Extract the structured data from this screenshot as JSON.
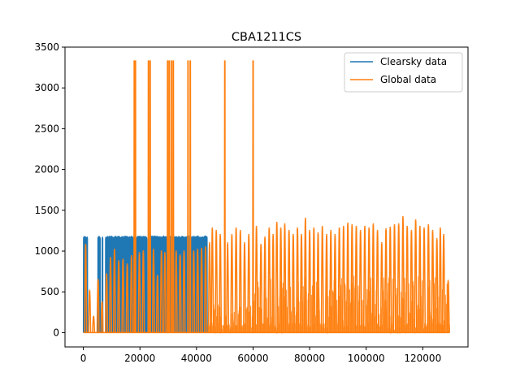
{
  "chart_data": {
    "type": "line",
    "title": "CBA1211CS",
    "xlabel": "",
    "ylabel": "",
    "xlim": [
      -6500,
      136000
    ],
    "ylim": [
      -175,
      3500
    ],
    "xticks": [
      0,
      20000,
      40000,
      60000,
      80000,
      100000,
      120000
    ],
    "xtick_labels": [
      "0",
      "20000",
      "40000",
      "60000",
      "80000",
      "100000",
      "120000"
    ],
    "yticks": [
      0,
      500,
      1000,
      1500,
      2000,
      2500,
      3000,
      3500
    ],
    "ytick_labels": [
      "0",
      "500",
      "1000",
      "1500",
      "2000",
      "2500",
      "3000",
      "3500"
    ],
    "legend_position": "top-right",
    "series": [
      {
        "name": "Clearsky data",
        "color": "#1f77b4",
        "description": "daily clear-sky irradiance cycles",
        "x_range": [
          0,
          43500
        ],
        "peak_value": 1190,
        "gaps": [
          [
            1500,
            5000
          ],
          [
            5800,
            6300
          ],
          [
            6900,
            7600
          ],
          [
            22500,
            23100
          ]
        ]
      },
      {
        "name": "Global data",
        "color": "#ff7f0e",
        "description": "measured global irradiance cycles",
        "x_range": [
          0,
          129500
        ],
        "spikes": [
          {
            "x": 18000,
            "value": 3330
          },
          {
            "x": 18400,
            "value": 3330
          },
          {
            "x": 23000,
            "value": 3330
          },
          {
            "x": 23600,
            "value": 3330
          },
          {
            "x": 29800,
            "value": 3330
          },
          {
            "x": 30400,
            "value": 3330
          },
          {
            "x": 31200,
            "value": 3330
          },
          {
            "x": 31800,
            "value": 3330
          },
          {
            "x": 37000,
            "value": 3330
          },
          {
            "x": 37800,
            "value": 3330
          },
          {
            "x": 50000,
            "value": 3330
          },
          {
            "x": 60000,
            "value": 3330
          }
        ],
        "daily_peaks": [
          {
            "x": 800,
            "value": 1080
          },
          {
            "x": 2200,
            "value": 520
          },
          {
            "x": 3600,
            "value": 200
          },
          {
            "x": 5200,
            "value": 650
          },
          {
            "x": 6600,
            "value": 380
          },
          {
            "x": 8200,
            "value": 720
          },
          {
            "x": 9600,
            "value": 920
          },
          {
            "x": 11000,
            "value": 1020
          },
          {
            "x": 12500,
            "value": 880
          },
          {
            "x": 14000,
            "value": 900
          },
          {
            "x": 15500,
            "value": 840
          },
          {
            "x": 17000,
            "value": 940
          },
          {
            "x": 19800,
            "value": 980
          },
          {
            "x": 21200,
            "value": 1000
          },
          {
            "x": 24800,
            "value": 1020
          },
          {
            "x": 26200,
            "value": 700
          },
          {
            "x": 27600,
            "value": 1000
          },
          {
            "x": 28800,
            "value": 980
          },
          {
            "x": 32800,
            "value": 1000
          },
          {
            "x": 34200,
            "value": 950
          },
          {
            "x": 35600,
            "value": 1000
          },
          {
            "x": 39000,
            "value": 1000
          },
          {
            "x": 40400,
            "value": 1020
          },
          {
            "x": 41800,
            "value": 1030
          },
          {
            "x": 43200,
            "value": 1050
          },
          {
            "x": 44600,
            "value": 1100
          },
          {
            "x": 45600,
            "value": 1280
          },
          {
            "x": 47000,
            "value": 1250
          },
          {
            "x": 48400,
            "value": 1200
          },
          {
            "x": 51000,
            "value": 1100
          },
          {
            "x": 52500,
            "value": 1200
          },
          {
            "x": 54000,
            "value": 1280
          },
          {
            "x": 55500,
            "value": 1250
          },
          {
            "x": 57000,
            "value": 1100
          },
          {
            "x": 58500,
            "value": 1200
          },
          {
            "x": 61200,
            "value": 1300
          },
          {
            "x": 62800,
            "value": 1080
          },
          {
            "x": 64200,
            "value": 1170
          },
          {
            "x": 65700,
            "value": 1280
          },
          {
            "x": 67100,
            "value": 1200
          },
          {
            "x": 68400,
            "value": 1350
          },
          {
            "x": 69800,
            "value": 1280
          },
          {
            "x": 71200,
            "value": 1330
          },
          {
            "x": 72700,
            "value": 1250
          },
          {
            "x": 74200,
            "value": 1200
          },
          {
            "x": 75700,
            "value": 1280
          },
          {
            "x": 77100,
            "value": 1200
          },
          {
            "x": 78500,
            "value": 1400
          },
          {
            "x": 80000,
            "value": 1250
          },
          {
            "x": 81500,
            "value": 1280
          },
          {
            "x": 83000,
            "value": 1220
          },
          {
            "x": 84500,
            "value": 1300
          },
          {
            "x": 86000,
            "value": 1200
          },
          {
            "x": 87500,
            "value": 1250
          },
          {
            "x": 89000,
            "value": 1200
          },
          {
            "x": 90500,
            "value": 1280
          },
          {
            "x": 92000,
            "value": 1300
          },
          {
            "x": 93500,
            "value": 1340
          },
          {
            "x": 95000,
            "value": 1320
          },
          {
            "x": 96500,
            "value": 1300
          },
          {
            "x": 98000,
            "value": 1250
          },
          {
            "x": 99500,
            "value": 1300
          },
          {
            "x": 101000,
            "value": 1280
          },
          {
            "x": 102500,
            "value": 1330
          },
          {
            "x": 104000,
            "value": 1250
          },
          {
            "x": 105500,
            "value": 1100
          },
          {
            "x": 107000,
            "value": 1270
          },
          {
            "x": 108500,
            "value": 1290
          },
          {
            "x": 110000,
            "value": 1320
          },
          {
            "x": 111500,
            "value": 1330
          },
          {
            "x": 113000,
            "value": 1420
          },
          {
            "x": 114500,
            "value": 1300
          },
          {
            "x": 116000,
            "value": 1250
          },
          {
            "x": 117500,
            "value": 1380
          },
          {
            "x": 119000,
            "value": 1300
          },
          {
            "x": 120500,
            "value": 1280
          },
          {
            "x": 122000,
            "value": 1320
          },
          {
            "x": 123500,
            "value": 1250
          },
          {
            "x": 125000,
            "value": 1150
          },
          {
            "x": 126200,
            "value": 1280
          },
          {
            "x": 127400,
            "value": 1200
          },
          {
            "x": 129000,
            "value": 640
          }
        ]
      }
    ]
  }
}
